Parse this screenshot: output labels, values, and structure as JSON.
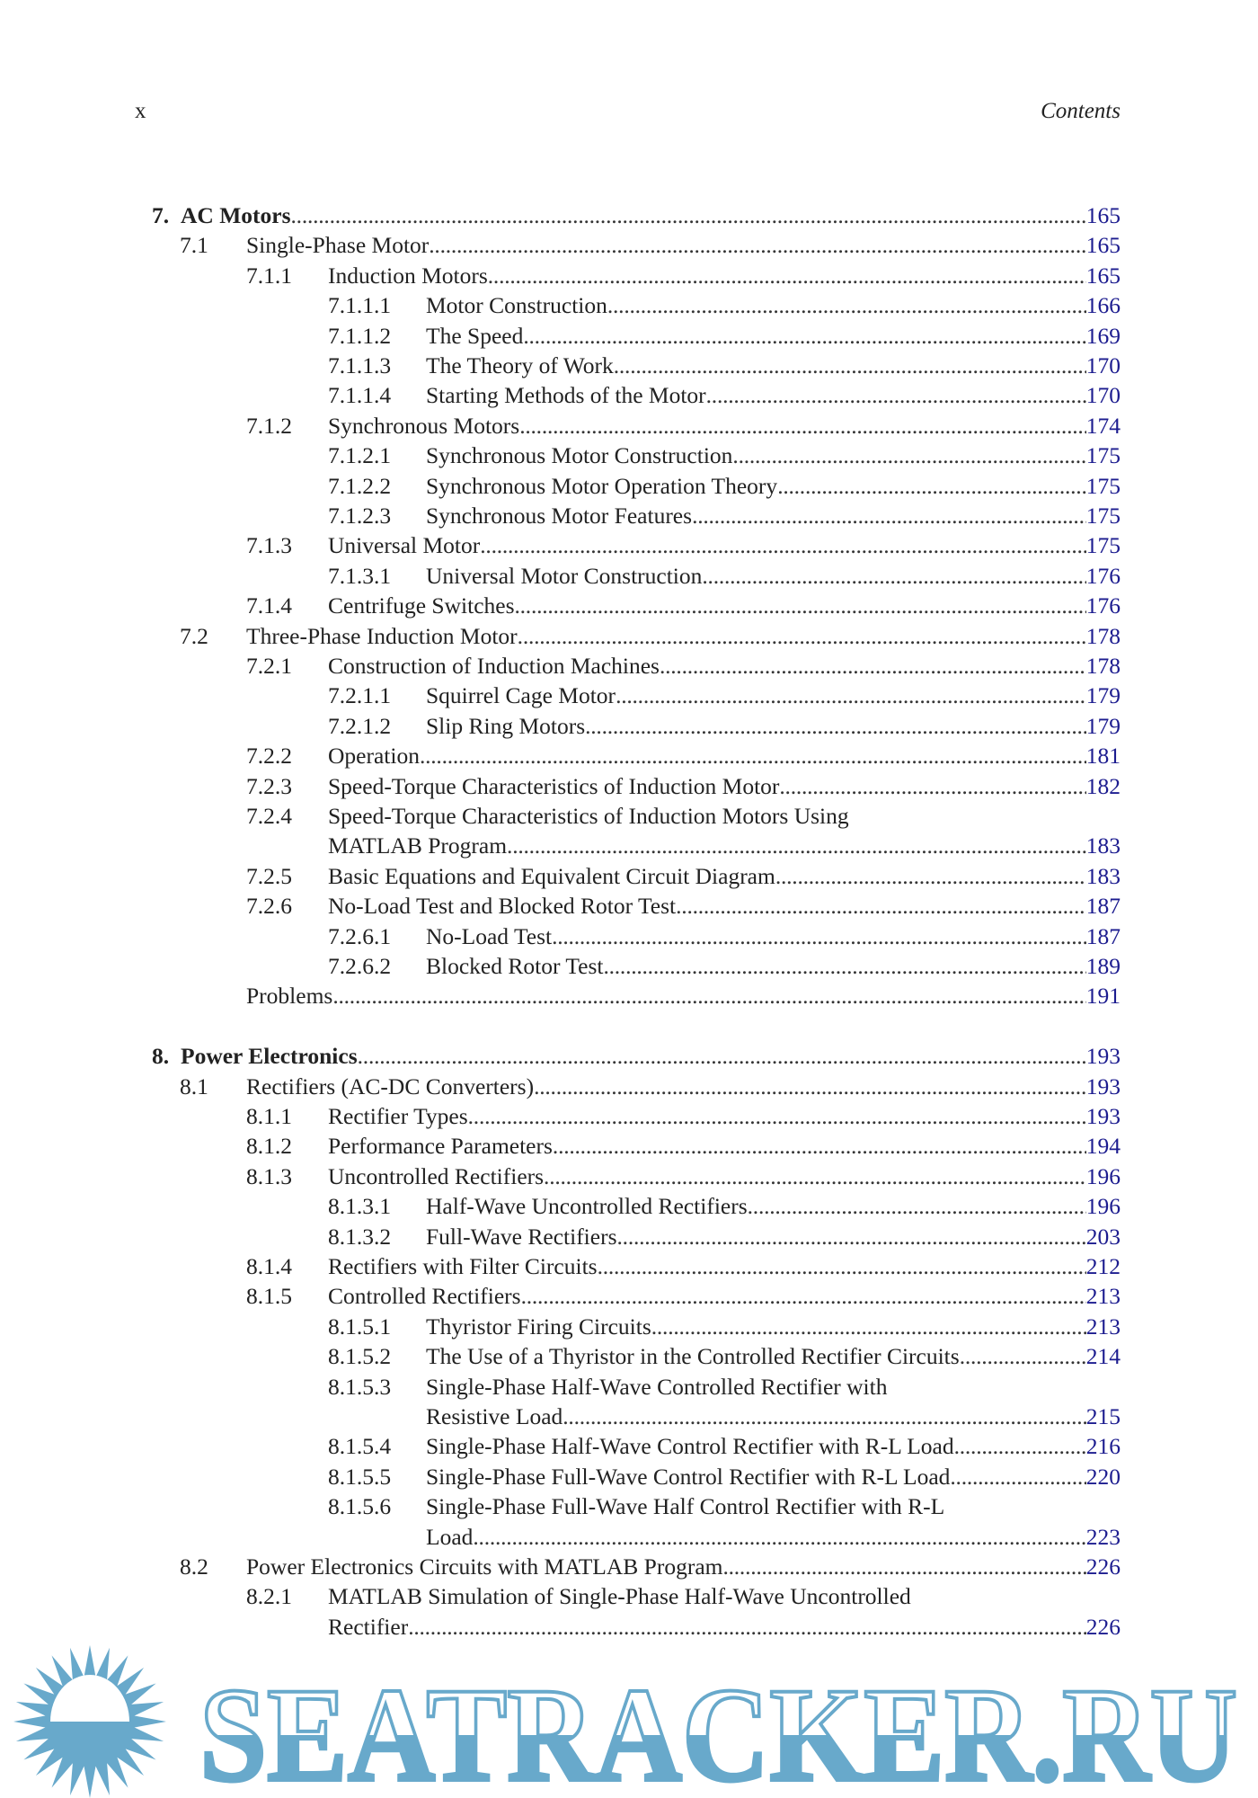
{
  "header": {
    "page_number": "x",
    "running_title": "Contents"
  },
  "colors": {
    "page_link": "#1c1c8f",
    "watermark": "#68a9cb"
  },
  "toc": [
    {
      "level": 0,
      "num": "7.",
      "title": "AC Motors",
      "page": "165"
    },
    {
      "level": 1,
      "num": "7.1",
      "title": "Single-Phase Motor",
      "page": "165"
    },
    {
      "level": 2,
      "num": "7.1.1",
      "title": "Induction Motors",
      "page": "165"
    },
    {
      "level": 3,
      "num": "7.1.1.1",
      "title": "Motor Construction",
      "page": "166"
    },
    {
      "level": 3,
      "num": "7.1.1.2",
      "title": "The Speed",
      "page": "169"
    },
    {
      "level": 3,
      "num": "7.1.1.3",
      "title": "The Theory of Work",
      "page": "170"
    },
    {
      "level": 3,
      "num": "7.1.1.4",
      "title": "Starting Methods of the Motor",
      "page": "170"
    },
    {
      "level": 2,
      "num": "7.1.2",
      "title": "Synchronous Motors",
      "page": "174"
    },
    {
      "level": 3,
      "num": "7.1.2.1",
      "title": "Synchronous Motor Construction",
      "page": "175"
    },
    {
      "level": 3,
      "num": "7.1.2.2",
      "title": "Synchronous Motor Operation Theory",
      "page": "175"
    },
    {
      "level": 3,
      "num": "7.1.2.3",
      "title": "Synchronous Motor Features",
      "page": "175"
    },
    {
      "level": 2,
      "num": "7.1.3",
      "title": "Universal Motor",
      "page": "175"
    },
    {
      "level": 3,
      "num": "7.1.3.1",
      "title": "Universal Motor Construction",
      "page": "176"
    },
    {
      "level": 2,
      "num": "7.1.4",
      "title": "Centrifuge Switches",
      "page": "176"
    },
    {
      "level": 1,
      "num": "7.2",
      "title": "Three-Phase Induction Motor",
      "page": "178"
    },
    {
      "level": 2,
      "num": "7.2.1",
      "title": "Construction of Induction Machines",
      "page": "178"
    },
    {
      "level": 3,
      "num": "7.2.1.1",
      "title": "Squirrel Cage Motor",
      "page": "179"
    },
    {
      "level": 3,
      "num": "7.2.1.2",
      "title": "Slip Ring Motors",
      "page": "179"
    },
    {
      "level": 2,
      "num": "7.2.2",
      "title": "Operation",
      "page": "181"
    },
    {
      "level": 2,
      "num": "7.2.3",
      "title": "Speed-Torque Characteristics of Induction Motor",
      "page": "182"
    },
    {
      "level": 2,
      "num": "7.2.4",
      "title": "Speed-Torque Characteristics of Induction Motors Using",
      "cont": "MATLAB Program",
      "page": "183"
    },
    {
      "level": 2,
      "num": "7.2.5",
      "title": "Basic Equations and Equivalent Circuit Diagram",
      "page": "183"
    },
    {
      "level": 2,
      "num": "7.2.6",
      "title": "No-Load Test and Blocked Rotor Test",
      "page": "187"
    },
    {
      "level": 3,
      "num": "7.2.6.1",
      "title": "No-Load Test",
      "page": "187"
    },
    {
      "level": 3,
      "num": "7.2.6.2",
      "title": "Blocked Rotor Test",
      "page": "189"
    },
    {
      "level": 1,
      "num": "",
      "title": "Problems",
      "page": "191",
      "gap_after": true
    },
    {
      "level": 0,
      "num": "8.",
      "title": "Power Electronics",
      "page": "193"
    },
    {
      "level": 1,
      "num": "8.1",
      "title": "Rectifiers (AC-DC Converters)",
      "page": "193"
    },
    {
      "level": 2,
      "num": "8.1.1",
      "title": "Rectifier Types",
      "page": "193"
    },
    {
      "level": 2,
      "num": "8.1.2",
      "title": "Performance Parameters",
      "page": "194"
    },
    {
      "level": 2,
      "num": "8.1.3",
      "title": "Uncontrolled Rectifiers",
      "page": "196"
    },
    {
      "level": 3,
      "num": "8.1.3.1",
      "title": "Half-Wave Uncontrolled Rectifiers",
      "page": "196"
    },
    {
      "level": 3,
      "num": "8.1.3.2",
      "title": "Full-Wave Rectifiers",
      "page": "203"
    },
    {
      "level": 2,
      "num": "8.1.4",
      "title": "Rectifiers with Filter Circuits",
      "page": "212"
    },
    {
      "level": 2,
      "num": "8.1.5",
      "title": "Controlled Rectifiers",
      "page": "213"
    },
    {
      "level": 3,
      "num": "8.1.5.1",
      "title": "Thyristor Firing Circuits",
      "page": "213"
    },
    {
      "level": 3,
      "num": "8.1.5.2",
      "title": "The Use of a Thyristor in the Controlled Rectifier Circuits",
      "page": "214"
    },
    {
      "level": 3,
      "num": "8.1.5.3",
      "title": "Single-Phase Half-Wave Controlled Rectifier with",
      "cont": "Resistive Load",
      "page": "215"
    },
    {
      "level": 3,
      "num": "8.1.5.4",
      "title": "Single-Phase Half-Wave Control Rectifier with R-L Load",
      "page": "216"
    },
    {
      "level": 3,
      "num": "8.1.5.5",
      "title": "Single-Phase Full-Wave Control Rectifier with R-L Load",
      "page": "220"
    },
    {
      "level": 3,
      "num": "8.1.5.6",
      "title": "Single-Phase Full-Wave Half Control Rectifier with R-L",
      "cont": "Load",
      "page": "223"
    },
    {
      "level": 1,
      "num": "8.2",
      "title": "Power Electronics Circuits with MATLAB Program",
      "page": "226"
    },
    {
      "level": 2,
      "num": "8.2.1",
      "title": "MATLAB Simulation of Single-Phase Half-Wave Uncontrolled",
      "cont": "Rectifier",
      "page": "226"
    }
  ],
  "watermark": {
    "text": "SEATRACKER.RU",
    "icon": "sun-icon"
  }
}
